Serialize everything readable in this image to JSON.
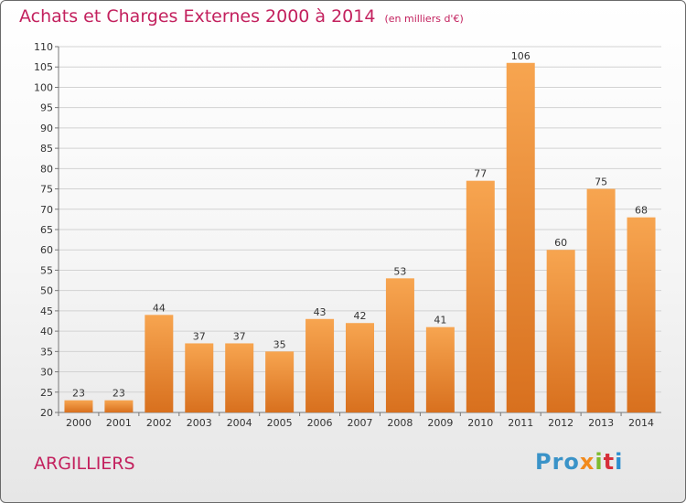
{
  "header": {
    "title": "Achats et Charges Externes 2000 à 2014",
    "subtitle": "(en milliers d'€)"
  },
  "footer": {
    "commune": "ARGILLIERS",
    "logo": [
      "Pro",
      "x",
      "i",
      "t",
      "i"
    ]
  },
  "colors": {
    "accent": "#c3215e",
    "bar_light": "#f7a550",
    "bar_dark": "#d8701e"
  },
  "chart_data": {
    "type": "bar",
    "title": "Achats et Charges Externes 2000 à 2014",
    "subtitle": "(en milliers d'€)",
    "xlabel": "",
    "ylabel": "",
    "categories": [
      "2000",
      "2001",
      "2002",
      "2003",
      "2004",
      "2005",
      "2006",
      "2007",
      "2008",
      "2009",
      "2010",
      "2011",
      "2012",
      "2013",
      "2014"
    ],
    "values": [
      23,
      23,
      44,
      37,
      37,
      35,
      43,
      42,
      53,
      41,
      77,
      106,
      60,
      75,
      68
    ],
    "ylim": [
      20,
      110
    ],
    "yticks": [
      20,
      25,
      30,
      35,
      40,
      45,
      50,
      55,
      60,
      65,
      70,
      75,
      80,
      85,
      90,
      95,
      100,
      105,
      110
    ],
    "grid": true,
    "data_labels": true
  }
}
